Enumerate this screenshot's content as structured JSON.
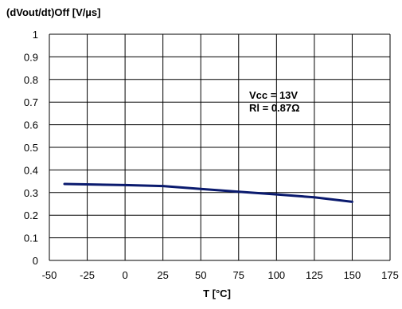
{
  "chart_data": {
    "type": "line",
    "title": "",
    "ylabel": "(dVout/dt)Off  [V/µs]",
    "xlabel": "T [°C]",
    "xlim": [
      -50,
      175
    ],
    "ylim": [
      0,
      1
    ],
    "x_ticks": [
      -50,
      -25,
      0,
      25,
      50,
      75,
      100,
      125,
      150,
      175
    ],
    "y_ticks": [
      0,
      0.1,
      0.2,
      0.3,
      0.4,
      0.5,
      0.6,
      0.7,
      0.8,
      0.9,
      1
    ],
    "x_tick_labels": [
      "-50",
      "-25",
      "0",
      "25",
      "50",
      "75",
      "100",
      "125",
      "150",
      "175"
    ],
    "y_tick_labels": [
      "0",
      "0.1",
      "0.2",
      "0.3",
      "0.4",
      "0.5",
      "0.6",
      "0.7",
      "0.8",
      "0.9",
      "1"
    ],
    "grid": true,
    "series": [
      {
        "color": "#0a1a6e",
        "x": [
          -40,
          0,
          25,
          50,
          75,
          100,
          125,
          150
        ],
        "y": [
          0.338,
          0.333,
          0.329,
          0.316,
          0.304,
          0.292,
          0.279,
          0.259
        ]
      }
    ],
    "annotations": [
      "Vcc = 13V",
      "Rl = 0.87Ω"
    ]
  }
}
